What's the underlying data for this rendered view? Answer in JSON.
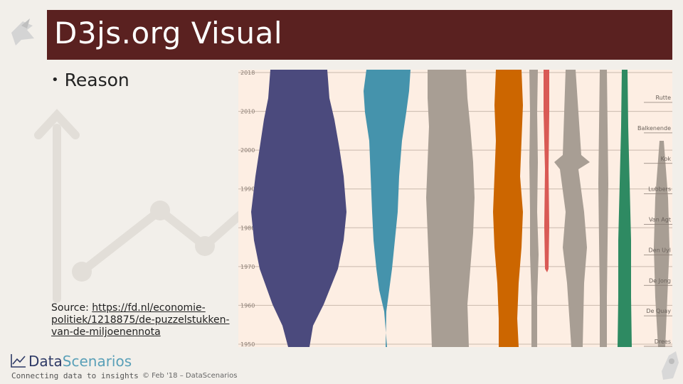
{
  "slide": {
    "title": "D3js.org Visual",
    "bullets": [
      {
        "text": "Reason"
      }
    ],
    "source_label": "Source: ",
    "source_link": "https://fd.nl/economie-politiek/1218875/de-puzzelstukken-van-de-miljoenennota",
    "logo_name_part1": "Data",
    "logo_name_part2": "Scenarios",
    "logo_tagline": "Connecting data to insights",
    "footer": "© Feb '18 – DataScenarios"
  },
  "colors": {
    "title_bar": "#5a2120",
    "chart_bg": "#fdeee3",
    "series": [
      "#4b4a7d",
      "#4593ac",
      "#a89e94",
      "#cc6600",
      "#d95a55",
      "#2e8a62"
    ]
  },
  "chart_data": {
    "type": "area",
    "title": "",
    "y_ticks": [
      "2018",
      "2010",
      "2000",
      "1990",
      "1980",
      "1970",
      "1960",
      "1950"
    ],
    "right_labels": [
      "Rutte",
      "Balkenende",
      "Kok",
      "Lubbers",
      "Van Agt",
      "Den Uyl",
      "De Jong",
      "De Quay",
      "Drees"
    ],
    "grid": true
  }
}
